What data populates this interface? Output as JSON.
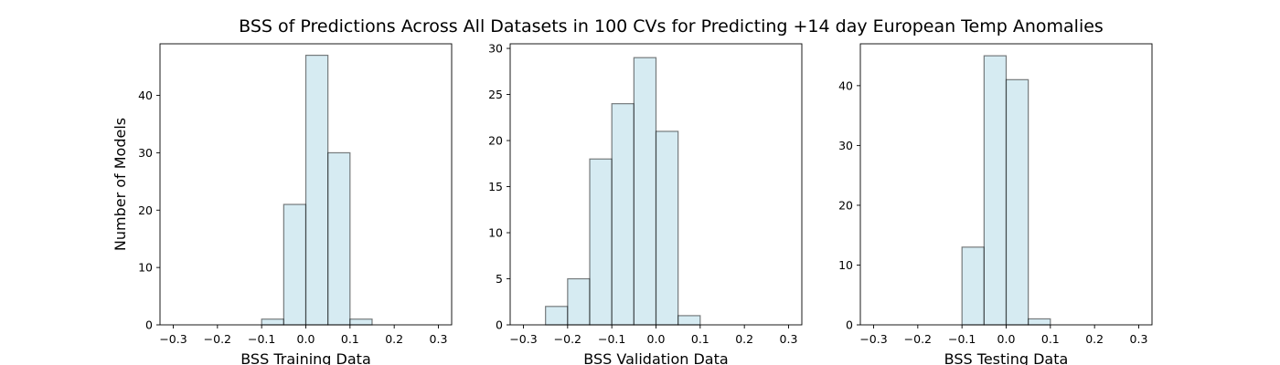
{
  "title": "BSS of Predictions Across All Datasets in 100 CVs for Predicting +14 day European Temp Anomalies",
  "chart_data": [
    {
      "type": "bar",
      "subtype": "histogram",
      "xlabel": "BSS Training Data",
      "ylabel": "Number of Models",
      "xlim": [
        -0.33,
        0.33
      ],
      "ylim": [
        0,
        49
      ],
      "xticks": [
        -0.3,
        -0.2,
        -0.1,
        0.0,
        0.1,
        0.2,
        0.3
      ],
      "yticks": [
        0,
        10,
        20,
        30,
        40
      ],
      "bins": [
        [
          -0.1,
          -0.05
        ],
        [
          -0.05,
          0.0
        ],
        [
          0.0,
          0.05
        ],
        [
          0.05,
          0.1
        ],
        [
          0.1,
          0.15
        ]
      ],
      "values": [
        1,
        21,
        47,
        30,
        1
      ],
      "bar_color": "#add8e6",
      "grid": false
    },
    {
      "type": "bar",
      "subtype": "histogram",
      "xlabel": "BSS Validation Data",
      "ylabel": "",
      "xlim": [
        -0.33,
        0.33
      ],
      "ylim": [
        0,
        30.5
      ],
      "xticks": [
        -0.3,
        -0.2,
        -0.1,
        0.0,
        0.1,
        0.2,
        0.3
      ],
      "yticks": [
        0,
        5,
        10,
        15,
        20,
        25,
        30
      ],
      "bins": [
        [
          -0.25,
          -0.2
        ],
        [
          -0.2,
          -0.15
        ],
        [
          -0.15,
          -0.1
        ],
        [
          -0.1,
          -0.05
        ],
        [
          -0.05,
          0.0
        ],
        [
          0.0,
          0.05
        ],
        [
          0.05,
          0.1
        ]
      ],
      "values": [
        2,
        5,
        18,
        24,
        29,
        21,
        1
      ],
      "bar_color": "#add8e6",
      "grid": false
    },
    {
      "type": "bar",
      "subtype": "histogram",
      "xlabel": "BSS Testing Data",
      "ylabel": "",
      "xlim": [
        -0.33,
        0.33
      ],
      "ylim": [
        0,
        47
      ],
      "xticks": [
        -0.3,
        -0.2,
        -0.1,
        0.0,
        0.1,
        0.2,
        0.3
      ],
      "yticks": [
        0,
        10,
        20,
        30,
        40
      ],
      "bins": [
        [
          -0.1,
          -0.05
        ],
        [
          -0.05,
          0.0
        ],
        [
          0.0,
          0.05
        ],
        [
          0.05,
          0.1
        ]
      ],
      "values": [
        13,
        45,
        41,
        1
      ],
      "bar_color": "#add8e6",
      "grid": false
    }
  ]
}
